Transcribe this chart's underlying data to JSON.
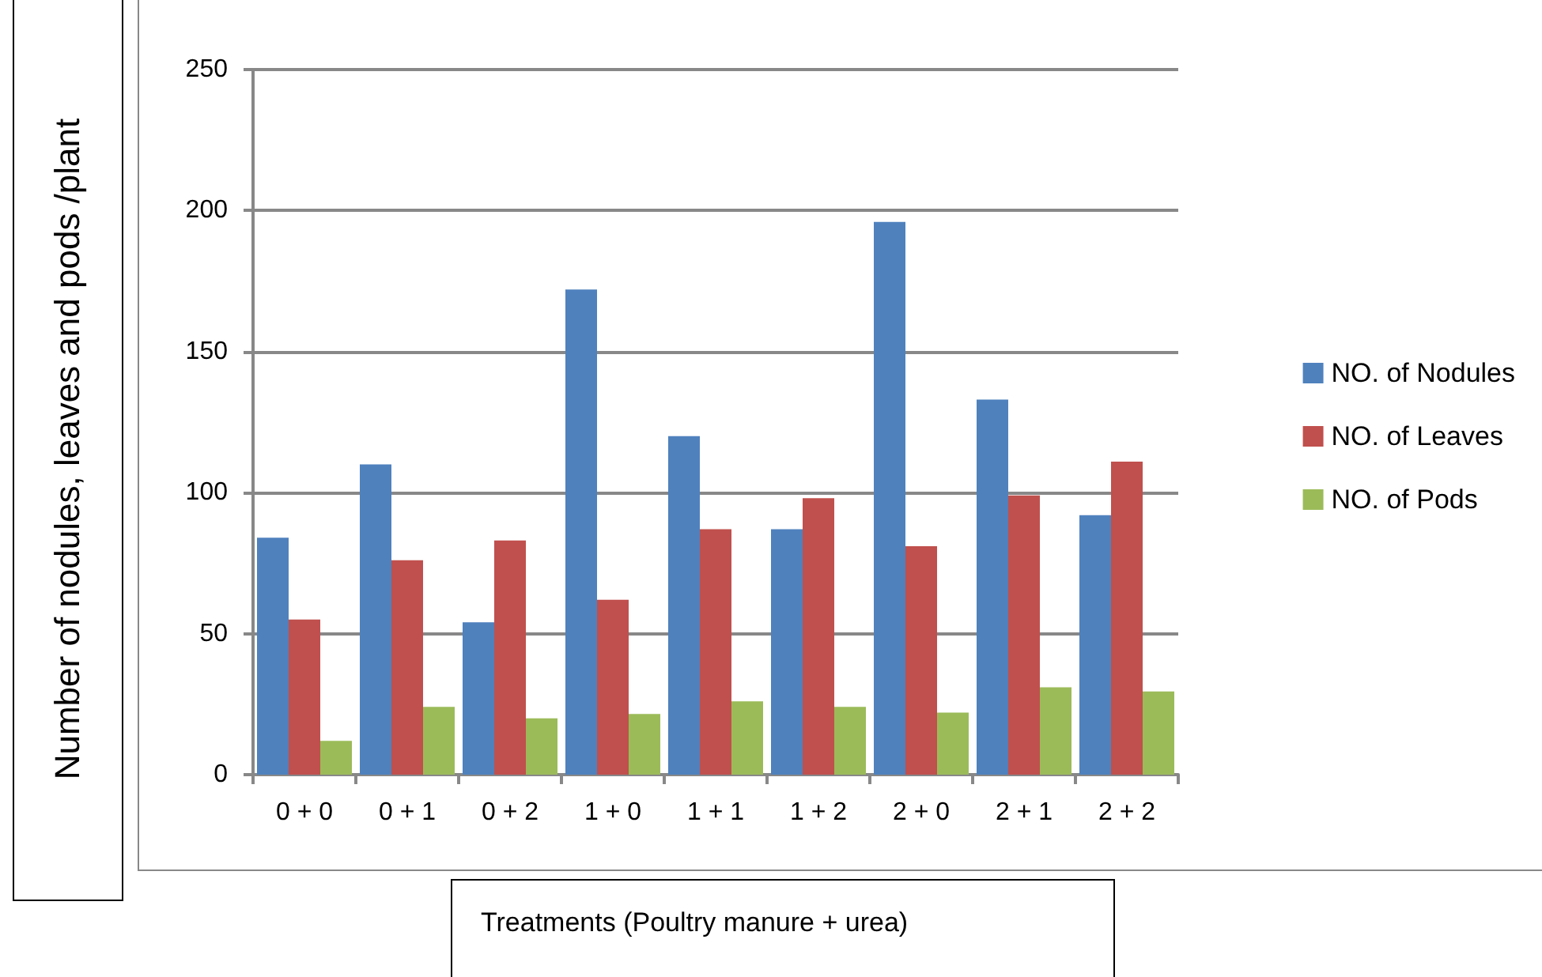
{
  "chart_data": {
    "type": "bar",
    "xlabel": "Treatments (Poultry manure + urea)",
    "ylabel": "Number of nodules, leaves and pods /plant",
    "categories": [
      "0 + 0",
      "0 + 1",
      "0 + 2",
      "1 + 0",
      "1 + 1",
      "1 + 2",
      "2 + 0",
      "2 + 1",
      "2 + 2"
    ],
    "series": [
      {
        "name": "NO. of Nodules",
        "color": "#4f81bd",
        "values": [
          84,
          110,
          54,
          172,
          120,
          87,
          196,
          133,
          92
        ]
      },
      {
        "name": "NO. of Leaves",
        "color": "#c0504d",
        "values": [
          55,
          76,
          83,
          62,
          87,
          98,
          81,
          99,
          111
        ]
      },
      {
        "name": "NO. of Pods",
        "color": "#9bbb59",
        "values": [
          12,
          24,
          20,
          21.5,
          26,
          24,
          22,
          31,
          29.5
        ]
      }
    ],
    "ylim": [
      0,
      250
    ],
    "yticks": [
      0,
      50,
      100,
      150,
      200,
      250
    ],
    "grid": "y",
    "legend": "right"
  }
}
